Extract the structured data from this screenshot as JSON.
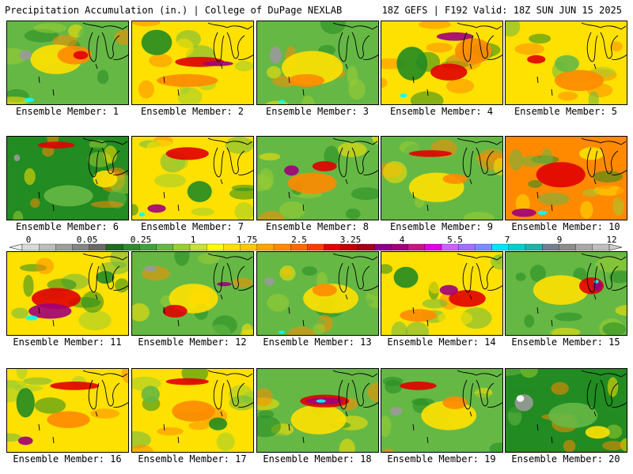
{
  "header": {
    "title_left": "Precipitation Accumulation (in.) | College of DuPage NEXLAB",
    "title_right": "18Z GEFS | F192 Valid: 18Z SUN JUN 15 2025"
  },
  "member_label_prefix": "Ensemble Member: ",
  "members": [
    {
      "number": "1",
      "base_color": "#66B845",
      "features": [
        [
          "#FFE100",
          0.4,
          0.45,
          0.42,
          0.35
        ],
        [
          "#FF8A00",
          0.55,
          0.4,
          0.28,
          0.22
        ],
        [
          "#E10000",
          0.6,
          0.4,
          0.12,
          0.1
        ],
        [
          "#9A9A9A",
          0.15,
          0.4,
          0.1,
          0.12
        ],
        [
          "#00FFFF",
          0.18,
          0.93,
          0.08,
          0.05
        ]
      ]
    },
    {
      "number": "2",
      "base_color": "#FFE100",
      "features": [
        [
          "#228B22",
          0.2,
          0.25,
          0.25,
          0.3
        ],
        [
          "#E10000",
          0.55,
          0.48,
          0.4,
          0.12
        ],
        [
          "#A0007A",
          0.7,
          0.5,
          0.25,
          0.06
        ],
        [
          "#FF8A00",
          0.45,
          0.7,
          0.5,
          0.15
        ]
      ]
    },
    {
      "number": "3",
      "base_color": "#66B845",
      "features": [
        [
          "#FFE100",
          0.45,
          0.55,
          0.5,
          0.4
        ],
        [
          "#FF8A00",
          0.4,
          0.7,
          0.3,
          0.15
        ],
        [
          "#9A9A9A",
          0.15,
          0.4,
          0.1,
          0.2
        ],
        [
          "#00FFFF",
          0.2,
          0.95,
          0.06,
          0.04
        ]
      ]
    },
    {
      "number": "4",
      "base_color": "#FFE100",
      "features": [
        [
          "#228B22",
          0.25,
          0.5,
          0.25,
          0.4
        ],
        [
          "#A0007A",
          0.6,
          0.18,
          0.3,
          0.1
        ],
        [
          "#E10000",
          0.55,
          0.6,
          0.3,
          0.2
        ],
        [
          "#FF8A00",
          0.75,
          0.35,
          0.3,
          0.3
        ],
        [
          "#00FFFF",
          0.18,
          0.88,
          0.06,
          0.05
        ]
      ]
    },
    {
      "number": "5",
      "base_color": "#FFE100",
      "features": [
        [
          "#E10000",
          0.25,
          0.45,
          0.15,
          0.1
        ],
        [
          "#FF8A00",
          0.6,
          0.7,
          0.4,
          0.25
        ],
        [
          "#66B845",
          0.5,
          0.5,
          0.2,
          0.2
        ]
      ]
    },
    {
      "number": "6",
      "base_color": "#228B22",
      "features": [
        [
          "#66B845",
          0.5,
          0.7,
          0.4,
          0.25
        ],
        [
          "#E10000",
          0.4,
          0.1,
          0.3,
          0.08
        ],
        [
          "#FFE100",
          0.8,
          0.5,
          0.2,
          0.2
        ],
        [
          "#9A9A9A",
          0.08,
          0.25,
          0.05,
          0.08
        ]
      ]
    },
    {
      "number": "7",
      "base_color": "#FFE100",
      "features": [
        [
          "#E10000",
          0.45,
          0.2,
          0.35,
          0.15
        ],
        [
          "#228B22",
          0.55,
          0.65,
          0.2,
          0.25
        ],
        [
          "#A0007A",
          0.2,
          0.85,
          0.15,
          0.1
        ],
        [
          "#00FFFF",
          0.08,
          0.92,
          0.05,
          0.05
        ]
      ]
    },
    {
      "number": "8",
      "base_color": "#66B845",
      "features": [
        [
          "#FF8A00",
          0.45,
          0.55,
          0.4,
          0.25
        ],
        [
          "#A0007A",
          0.28,
          0.4,
          0.12,
          0.12
        ],
        [
          "#E10000",
          0.55,
          0.35,
          0.2,
          0.12
        ]
      ]
    },
    {
      "number": "9",
      "base_color": "#66B845",
      "features": [
        [
          "#FFE100",
          0.45,
          0.6,
          0.45,
          0.35
        ],
        [
          "#E10000",
          0.4,
          0.2,
          0.35,
          0.08
        ],
        [
          "#FF8A00",
          0.6,
          0.5,
          0.2,
          0.12
        ]
      ]
    },
    {
      "number": "10",
      "base_color": "#FF8A00",
      "features": [
        [
          "#E10000",
          0.45,
          0.45,
          0.4,
          0.3
        ],
        [
          "#A0007A",
          0.15,
          0.9,
          0.2,
          0.1
        ],
        [
          "#FFE100",
          0.7,
          0.2,
          0.2,
          0.15
        ],
        [
          "#00FFFF",
          0.3,
          0.9,
          0.08,
          0.05
        ]
      ]
    },
    {
      "number": "11",
      "base_color": "#FFE100",
      "features": [
        [
          "#E10000",
          0.4,
          0.55,
          0.4,
          0.25
        ],
        [
          "#A0007A",
          0.35,
          0.7,
          0.35,
          0.18
        ],
        [
          "#00FFFF",
          0.2,
          0.78,
          0.1,
          0.06
        ],
        [
          "#228B22",
          0.8,
          0.3,
          0.15,
          0.15
        ]
      ]
    },
    {
      "number": "12",
      "base_color": "#66B845",
      "features": [
        [
          "#FFE100",
          0.5,
          0.55,
          0.4,
          0.35
        ],
        [
          "#E10000",
          0.35,
          0.7,
          0.2,
          0.15
        ],
        [
          "#A0007A",
          0.75,
          0.38,
          0.12,
          0.05
        ],
        [
          "#9A9A9A",
          0.15,
          0.2,
          0.1,
          0.08
        ]
      ]
    },
    {
      "number": "13",
      "base_color": "#66B845",
      "features": [
        [
          "#FFE100",
          0.6,
          0.55,
          0.45,
          0.35
        ],
        [
          "#FF8A00",
          0.55,
          0.45,
          0.2,
          0.15
        ],
        [
          "#9A9A9A",
          0.1,
          0.35,
          0.08,
          0.1
        ],
        [
          "#00FFFF",
          0.2,
          0.95,
          0.05,
          0.04
        ]
      ]
    },
    {
      "number": "14",
      "base_color": "#FFE100",
      "features": [
        [
          "#E10000",
          0.7,
          0.55,
          0.3,
          0.2
        ],
        [
          "#A0007A",
          0.55,
          0.45,
          0.15,
          0.12
        ],
        [
          "#228B22",
          0.2,
          0.3,
          0.2,
          0.25
        ],
        [
          "#FF8A00",
          0.3,
          0.75,
          0.3,
          0.15
        ]
      ]
    },
    {
      "number": "15",
      "base_color": "#66B845",
      "features": [
        [
          "#FFE100",
          0.45,
          0.45,
          0.45,
          0.35
        ],
        [
          "#E10000",
          0.7,
          0.4,
          0.2,
          0.2
        ],
        [
          "#A0007A",
          0.75,
          0.4,
          0.08,
          0.12
        ],
        [
          "#00FFFF",
          0.74,
          0.35,
          0.04,
          0.04
        ]
      ]
    },
    {
      "number": "16",
      "base_color": "#FFE100",
      "features": [
        [
          "#228B22",
          0.15,
          0.4,
          0.15,
          0.35
        ],
        [
          "#E10000",
          0.55,
          0.2,
          0.4,
          0.1
        ],
        [
          "#FF8A00",
          0.5,
          0.6,
          0.35,
          0.2
        ],
        [
          "#A0007A",
          0.15,
          0.85,
          0.12,
          0.1
        ]
      ]
    },
    {
      "number": "17",
      "base_color": "#FFE100",
      "features": [
        [
          "#66B845",
          0.15,
          0.3,
          0.15,
          0.2
        ],
        [
          "#FF8A00",
          0.5,
          0.5,
          0.35,
          0.25
        ],
        [
          "#E10000",
          0.45,
          0.15,
          0.35,
          0.08
        ],
        [
          "#228B22",
          0.7,
          0.65,
          0.15,
          0.15
        ]
      ]
    },
    {
      "number": "18",
      "base_color": "#66B845",
      "features": [
        [
          "#FFE100",
          0.5,
          0.6,
          0.45,
          0.35
        ],
        [
          "#E10000",
          0.55,
          0.38,
          0.4,
          0.15
        ],
        [
          "#A0007A",
          0.55,
          0.38,
          0.3,
          0.08
        ],
        [
          "#00FFFF",
          0.52,
          0.38,
          0.08,
          0.04
        ]
      ]
    },
    {
      "number": "19",
      "base_color": "#66B845",
      "features": [
        [
          "#FFE100",
          0.55,
          0.55,
          0.45,
          0.35
        ],
        [
          "#E10000",
          0.3,
          0.2,
          0.3,
          0.1
        ],
        [
          "#9A9A9A",
          0.12,
          0.5,
          0.1,
          0.1
        ],
        [
          "#FF8A00",
          0.6,
          0.4,
          0.2,
          0.15
        ]
      ]
    },
    {
      "number": "20",
      "base_color": "#228B22",
      "features": [
        [
          "#66B845",
          0.55,
          0.55,
          0.4,
          0.3
        ],
        [
          "#9A9A9A",
          0.15,
          0.4,
          0.15,
          0.2
        ],
        [
          "#FFFFFF",
          0.12,
          0.35,
          0.06,
          0.08
        ],
        [
          "#FFE100",
          0.75,
          0.75,
          0.2,
          0.15
        ]
      ]
    }
  ],
  "colorbar": {
    "labels": [
      "0",
      "0.05",
      "0.25",
      "1",
      "1.75",
      "2.5",
      "3.25",
      "4",
      "5.5",
      "7",
      "9",
      "12"
    ],
    "colors": [
      "#D9D9D9",
      "#BDBDBD",
      "#9E9E9E",
      "#848484",
      "#696969",
      "#1E6B1E",
      "#2E8B2E",
      "#3FA23F",
      "#66B845",
      "#9ACD32",
      "#C8E03C",
      "#FFFF00",
      "#FFE100",
      "#FFC800",
      "#FFA500",
      "#FF8A00",
      "#FF6A00",
      "#FF3C00",
      "#E10000",
      "#C00000",
      "#A0001A",
      "#8B008B",
      "#A0007A",
      "#C71585",
      "#E000E0",
      "#D060FF",
      "#A070FF",
      "#7B8CFF",
      "#00E5FF",
      "#00CDCD",
      "#20B2AA",
      "#708090",
      "#8C8C8C",
      "#A9A9A9",
      "#BEBEBE"
    ]
  }
}
